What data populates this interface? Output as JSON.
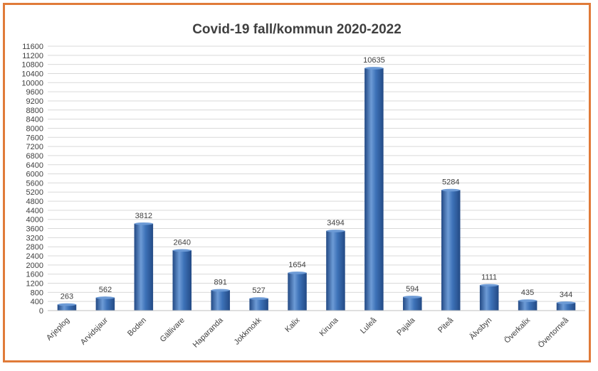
{
  "chart_data": {
    "type": "bar",
    "title": "Covid-19 fall/kommun 2020-2022",
    "categories": [
      "Arjeplog",
      "Arvidsjaur",
      "Boden",
      "Gällivare",
      "Haparanda",
      "Jokkmokk",
      "Kalix",
      "Kiruna",
      "Luleå",
      "Pajala",
      "Piteå",
      "Älvsbyn",
      "Överkalix",
      "Övertorneå"
    ],
    "values": [
      263,
      562,
      3812,
      2640,
      891,
      527,
      1654,
      3494,
      10635,
      594,
      5284,
      1111,
      435,
      344
    ],
    "value_labels": [
      "263",
      "562",
      "3812",
      "2640",
      "891",
      "527",
      "1654",
      "3494",
      "10635",
      "594",
      "5284",
      "1111",
      "435",
      "344"
    ],
    "ylim": [
      0,
      11600
    ],
    "yticks": [
      "0",
      "400",
      "800",
      "1200",
      "1600",
      "2000",
      "2400",
      "2800",
      "3200",
      "3600",
      "4000",
      "4400",
      "4800",
      "5200",
      "5600",
      "6000",
      "6400",
      "6800",
      "7200",
      "7600",
      "8000",
      "8400",
      "8800",
      "9200",
      "9600",
      "10000",
      "10400",
      "10800",
      "11200",
      "11600"
    ],
    "grid": true,
    "legend": "none",
    "colors": {
      "bar": "#3d72b8",
      "bar_dark": "#244b86",
      "bar_light": "#6d9bd6",
      "frame": "#e07b39",
      "grid": "#d9d9d9"
    }
  }
}
